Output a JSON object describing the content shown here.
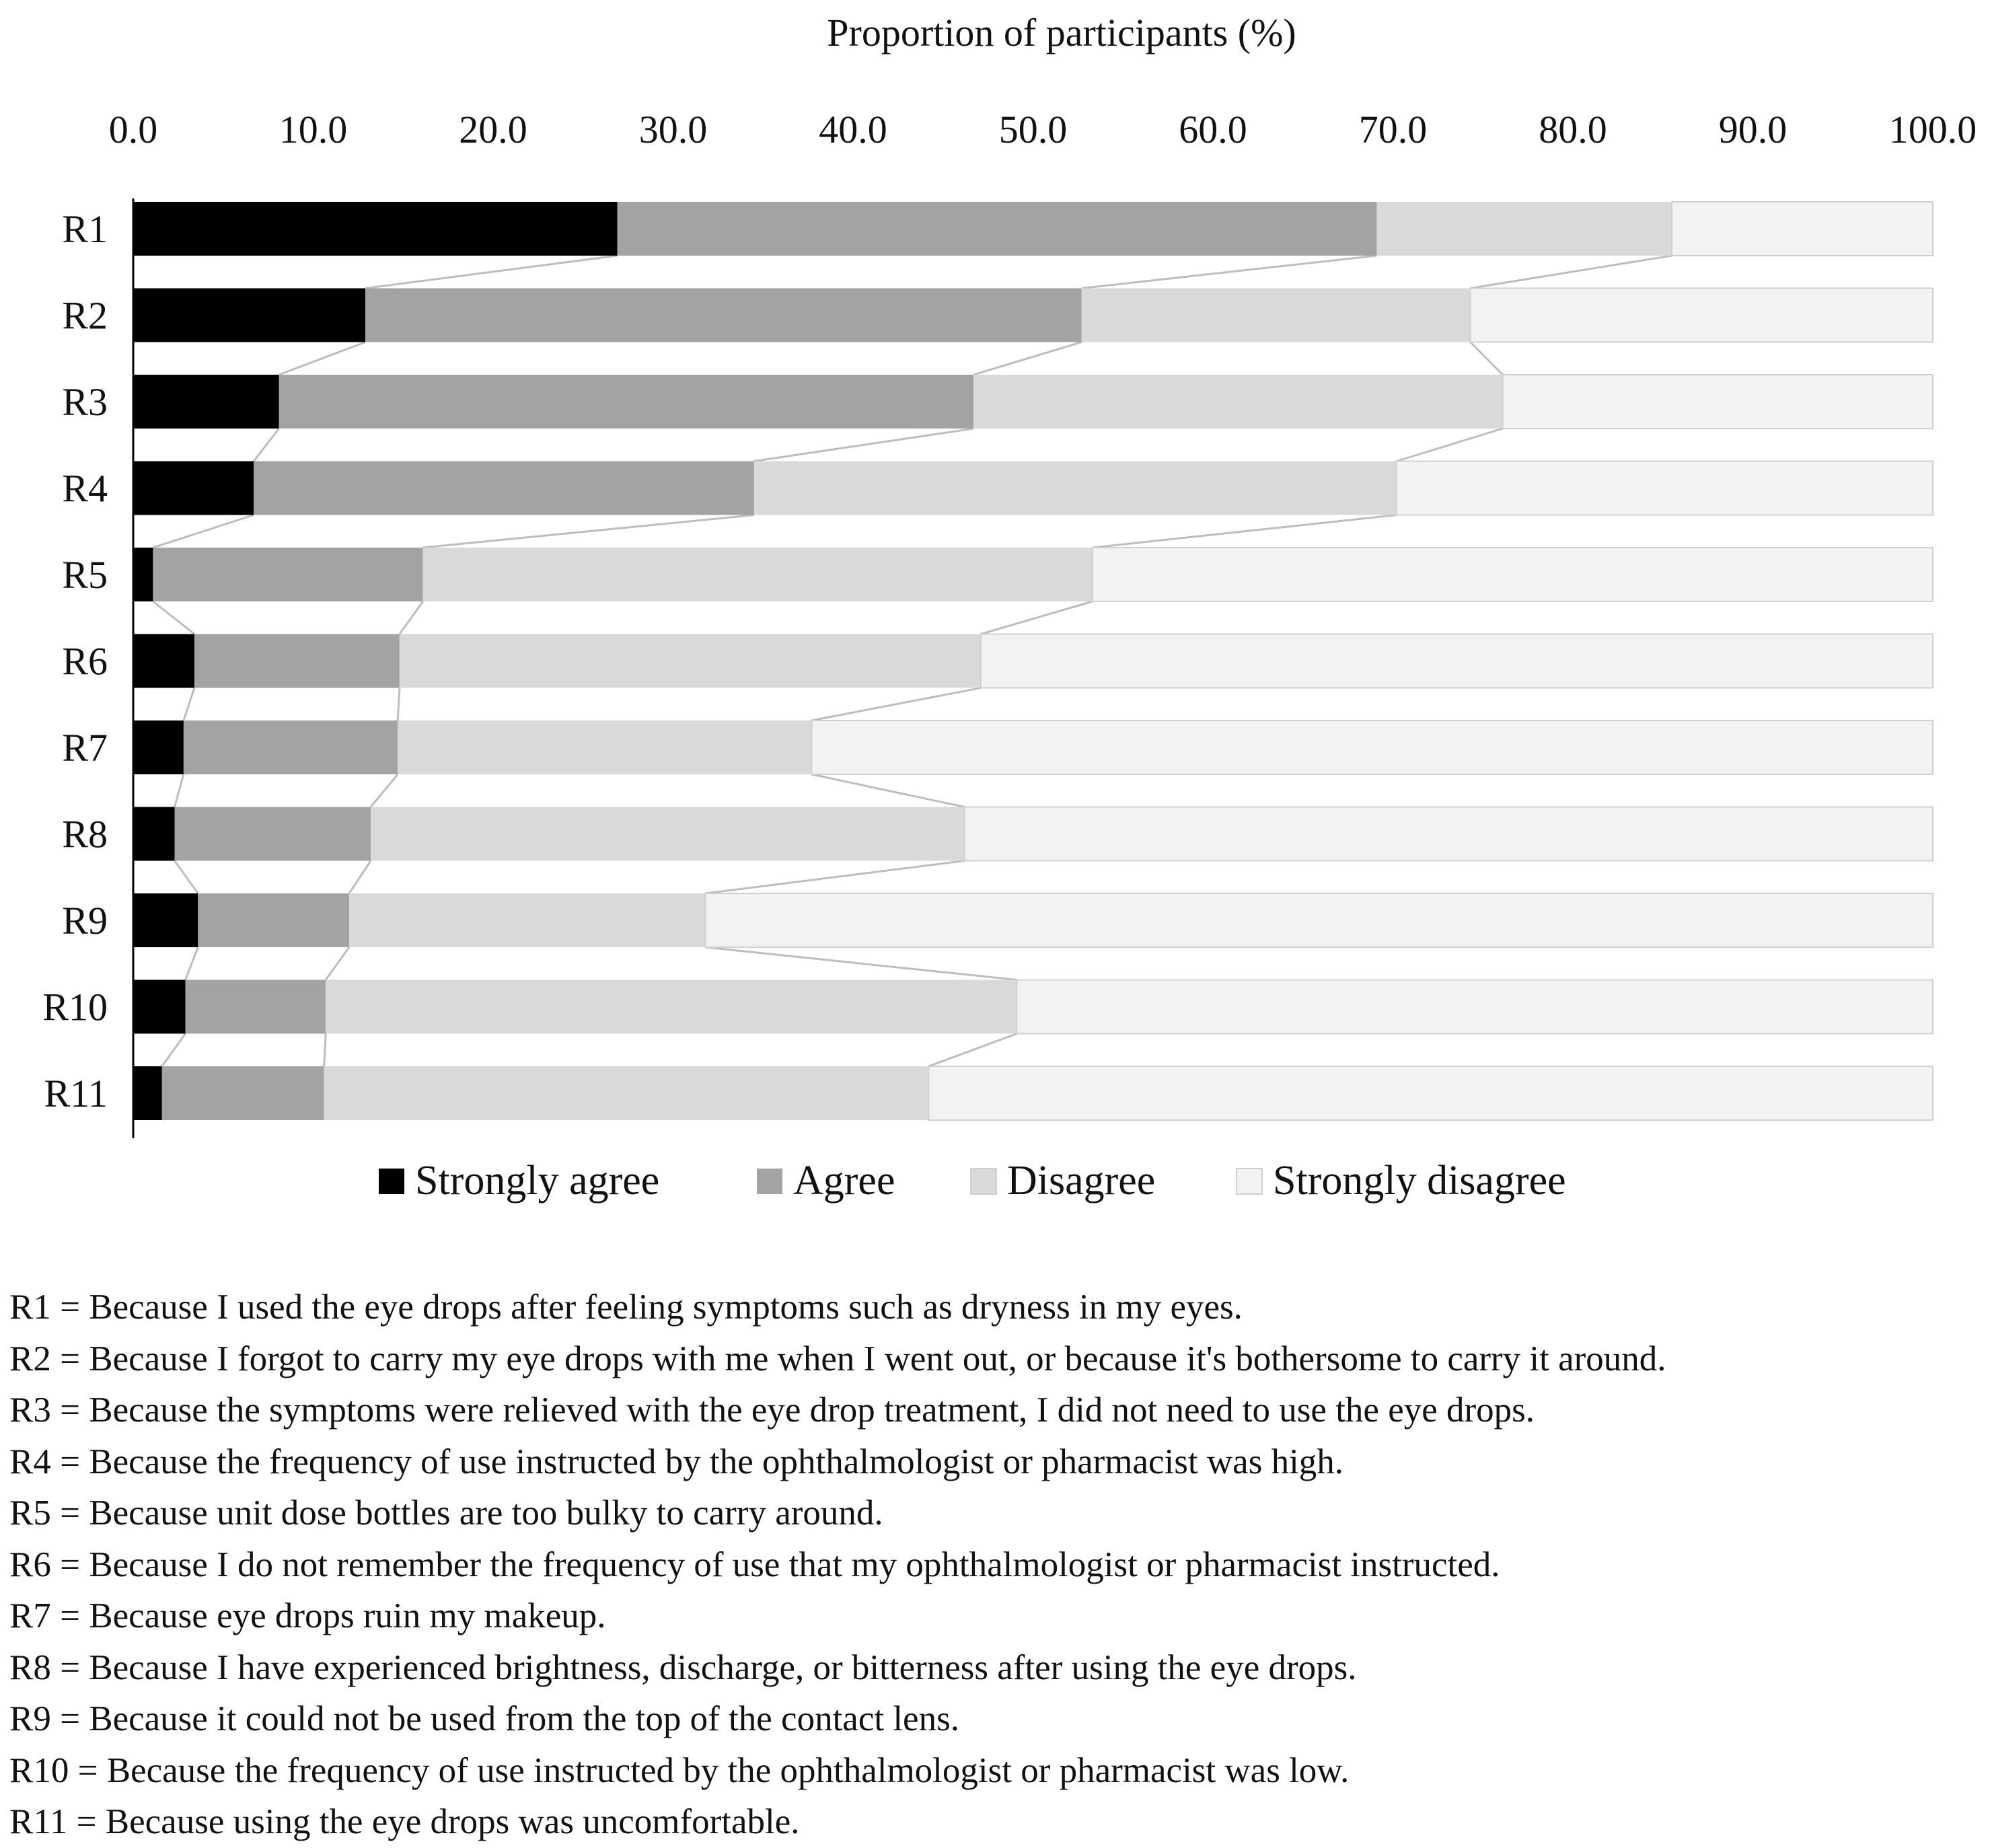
{
  "chart_data": {
    "type": "bar",
    "orientation": "horizontal",
    "stacked": true,
    "title": "Proportion of participants (%)",
    "xlabel": "Proportion of participants (%)",
    "ylabel": "",
    "xlim": [
      0,
      100
    ],
    "x_ticks": [
      "0.0",
      "10.0",
      "20.0",
      "30.0",
      "40.0",
      "50.0",
      "60.0",
      "70.0",
      "80.0",
      "90.0",
      "100.0"
    ],
    "categories": [
      "R1",
      "R2",
      "R3",
      "R4",
      "R5",
      "R6",
      "R7",
      "R8",
      "R9",
      "R10",
      "R11"
    ],
    "series": [
      {
        "name": "Strongly agree",
        "color": "#000000",
        "values": [
          26.9,
          12.9,
          8.1,
          6.7,
          1.1,
          3.4,
          2.8,
          2.3,
          3.6,
          2.9,
          1.6
        ]
      },
      {
        "name": "Agree",
        "color": "#a3a3a3",
        "values": [
          42.2,
          39.8,
          38.6,
          27.8,
          15.0,
          11.4,
          11.9,
          10.9,
          8.4,
          7.8,
          9.0
        ]
      },
      {
        "name": "Disagree",
        "color": "#d9d9d9",
        "values": [
          16.4,
          21.6,
          29.4,
          35.7,
          37.2,
          32.3,
          23.0,
          33.0,
          19.8,
          38.4,
          33.6
        ]
      },
      {
        "name": "Strongly disagree",
        "color": "#f2f2f2",
        "values": [
          14.5,
          25.7,
          23.9,
          29.8,
          46.7,
          52.9,
          62.3,
          53.8,
          68.2,
          50.9,
          55.8
        ]
      }
    ],
    "series_lines": true,
    "grid": false,
    "legend_position": "bottom"
  },
  "notes": [
    "R1 = Because I used the eye drops after feeling symptoms such as dryness in my eyes.",
    "R2 = Because I forgot to carry my eye drops with me when I went out, or because it's bothersome to carry it around.",
    "R3 = Because the symptoms were relieved with the eye drop treatment, I did not need to use the eye drops.",
    "R4 = Because the frequency of use instructed by the ophthalmologist or pharmacist was high.",
    "R5 = Because unit dose bottles are too bulky to carry around.",
    "R6 = Because I do not remember the frequency of use that my ophthalmologist or pharmacist instructed.",
    "R7 = Because eye drops ruin my makeup.",
    "R8 = Because I have experienced brightness, discharge, or bitterness after using the eye drops.",
    "R9 = Because it could not be used from the top of the contact lens.",
    "R10 = Because the frequency of use instructed by the ophthalmologist or pharmacist was low.",
    "R11 = Because using the eye drops was uncomfortable."
  ]
}
